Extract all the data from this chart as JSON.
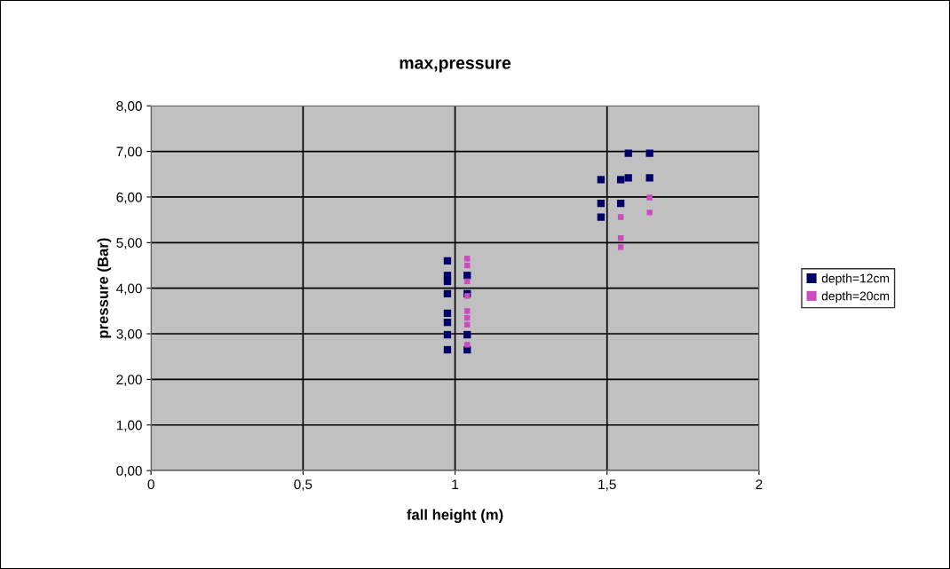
{
  "chart_data": {
    "type": "scatter",
    "title": "max,pressure",
    "xlabel": "fall height (m)",
    "ylabel": "pressure (Bar)",
    "xlim": [
      0,
      2
    ],
    "xticks": [
      0,
      {
        "value": 0.5,
        "label": "0,5"
      },
      1,
      {
        "value": 1.5,
        "label": "1,5"
      },
      2
    ],
    "ylim": [
      0,
      8
    ],
    "yticks": [
      {
        "value": 0,
        "label": "0,00"
      },
      {
        "value": 1,
        "label": "1,00"
      },
      {
        "value": 2,
        "label": "2,00"
      },
      {
        "value": 3,
        "label": "3,00"
      },
      {
        "value": 4,
        "label": "4,00"
      },
      {
        "value": 5,
        "label": "5,00"
      },
      {
        "value": 6,
        "label": "6,00"
      },
      {
        "value": 7,
        "label": "7,00"
      },
      {
        "value": 8,
        "label": "8,00"
      }
    ],
    "grid": true,
    "legend": "right",
    "marker": "square",
    "series": [
      {
        "name": "depth=12cm",
        "color": "#000066",
        "x": [
          0.975,
          0.975,
          1.04,
          0.975,
          0.975,
          1.04,
          0.975,
          0.975,
          0.975,
          1.04,
          0.975,
          1.04,
          1.48,
          1.545,
          1.48,
          1.545,
          1.48,
          1.57,
          1.64,
          1.57,
          1.64
        ],
        "values": [
          4.6,
          4.28,
          4.28,
          4.15,
          3.88,
          3.88,
          3.45,
          3.25,
          2.98,
          2.98,
          2.65,
          2.65,
          6.38,
          6.38,
          5.86,
          5.86,
          5.56,
          6.42,
          6.42,
          6.96,
          6.96
        ]
      },
      {
        "name": "depth=20cm",
        "color": "#cc4cbf",
        "x": [
          1.04,
          1.04,
          1.04,
          1.04,
          1.04,
          1.04,
          1.04,
          1.04,
          1.64,
          1.64,
          1.545,
          1.545,
          1.545
        ],
        "values": [
          4.65,
          4.5,
          4.15,
          3.83,
          3.5,
          3.35,
          3.2,
          2.76,
          5.99,
          5.66,
          5.56,
          5.1,
          4.9
        ]
      }
    ]
  }
}
